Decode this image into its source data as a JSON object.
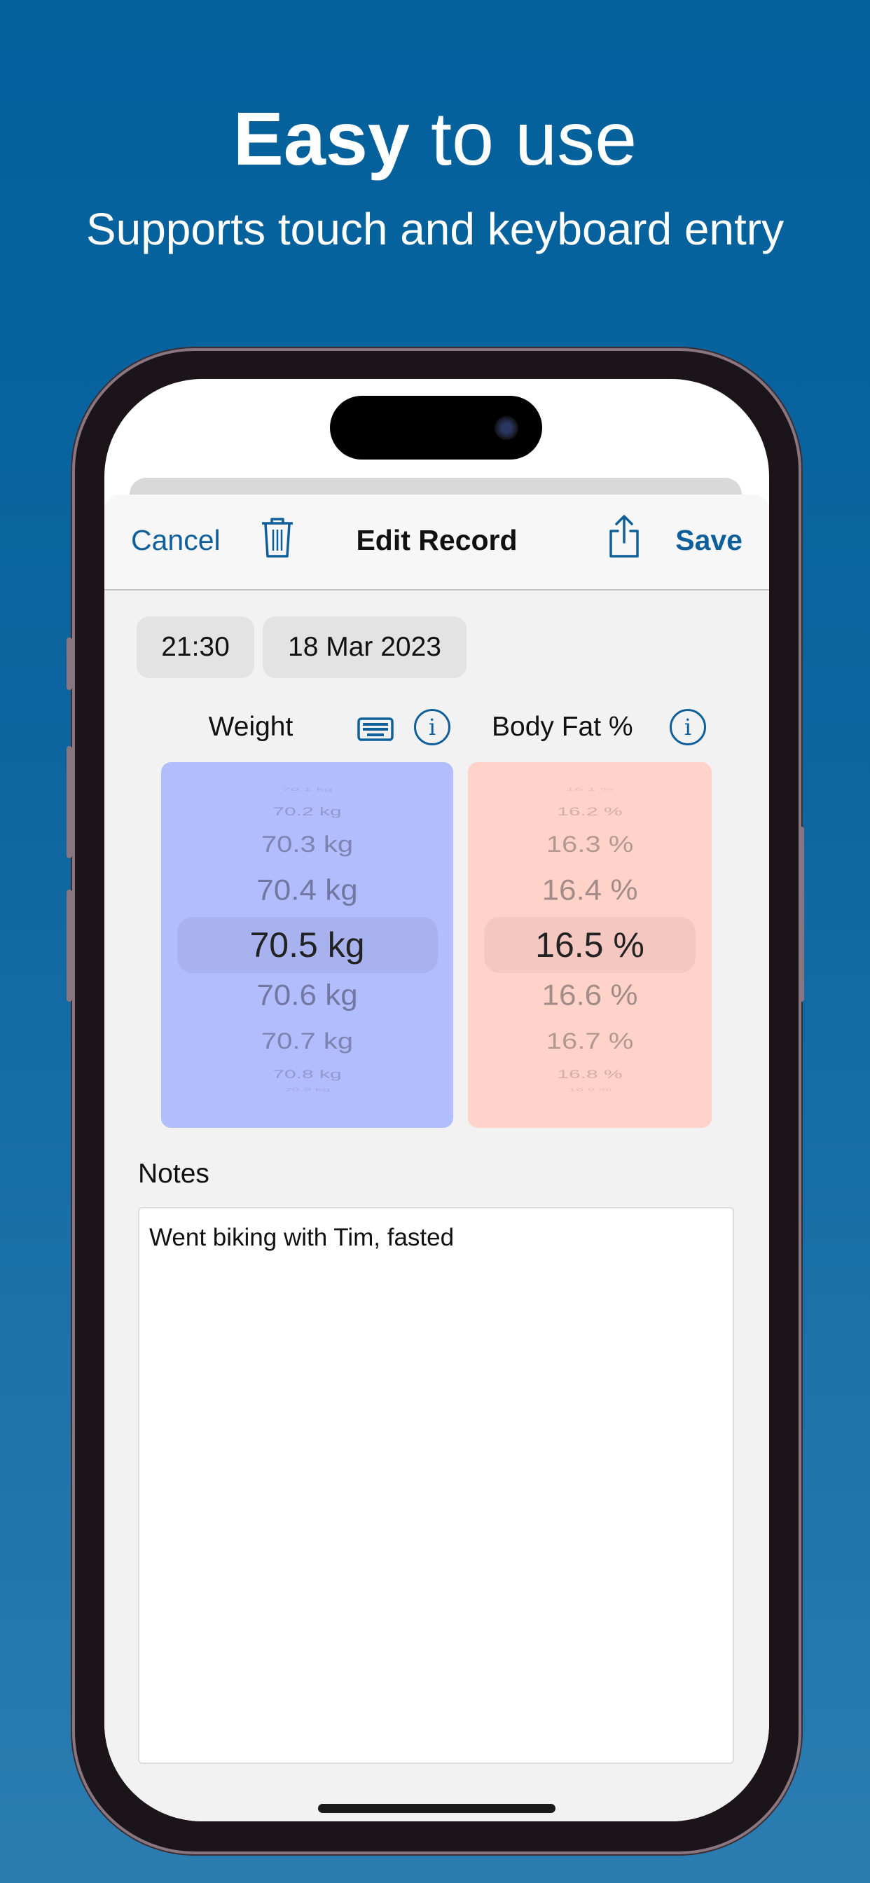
{
  "promo": {
    "headline_bold": "Easy",
    "headline_rest": " to use",
    "subtitle": "Supports touch and keyboard entry"
  },
  "nav": {
    "cancel": "Cancel",
    "title": "Edit Record",
    "save": "Save",
    "delete_icon": "trash-icon",
    "share_icon": "share-icon"
  },
  "record": {
    "time": "21:30",
    "date": "18 Mar 2023"
  },
  "weight": {
    "label": "Weight",
    "rows": [
      "70.1 kg",
      "70.2 kg",
      "70.3 kg",
      "70.4 kg",
      "70.5 kg",
      "70.6 kg",
      "70.7 kg",
      "70.8 kg",
      "70.9 kg"
    ],
    "selected": "70.5 kg",
    "color": "#b1bdfd"
  },
  "bodyfat": {
    "label": "Body Fat %",
    "rows": [
      "16.1 %",
      "16.2 %",
      "16.3 %",
      "16.4 %",
      "16.5 %",
      "16.6 %",
      "16.7 %",
      "16.8 %",
      "16.9 %"
    ],
    "selected": "16.5 %",
    "color": "#ffd3ca"
  },
  "notes": {
    "label": "Notes",
    "value": "Went biking with Tim, fasted"
  },
  "colors": {
    "accent": "#0f5f9b",
    "background": "#03609b"
  }
}
